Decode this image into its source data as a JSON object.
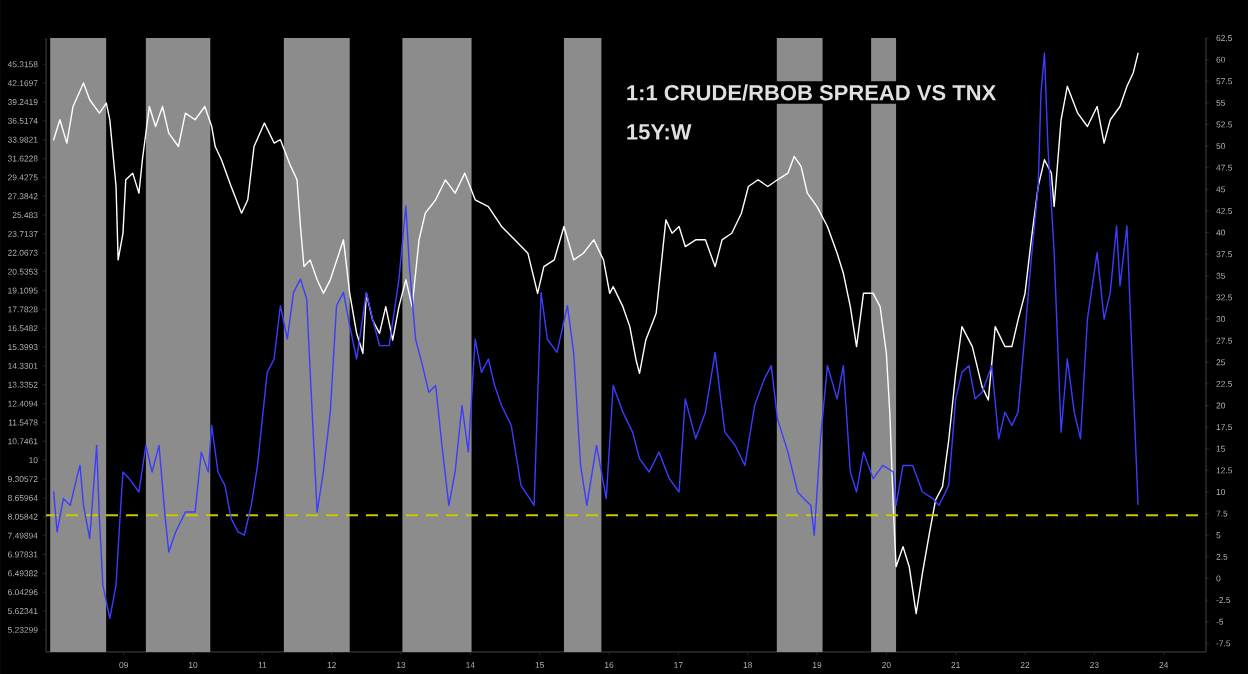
{
  "chart_data": {
    "type": "line",
    "title": "1:1 CRUDE/RBOB SPREAD VS TNX",
    "subtitle": "15Y:W",
    "log": "y",
    "xlim": [
      2007.88,
      2024.61
    ],
    "xticks": [
      {
        "value": 2009,
        "label": "09"
      },
      {
        "value": 2010,
        "label": "10"
      },
      {
        "value": 2011,
        "label": "11"
      },
      {
        "value": 2012,
        "label": "12"
      },
      {
        "value": 2013,
        "label": "13"
      },
      {
        "value": 2014,
        "label": "14"
      },
      {
        "value": 2015,
        "label": "15"
      },
      {
        "value": 2016,
        "label": "16"
      },
      {
        "value": 2017,
        "label": "17"
      },
      {
        "value": 2018,
        "label": "18"
      },
      {
        "value": 2019,
        "label": "19"
      },
      {
        "value": 2020,
        "label": "20"
      },
      {
        "value": 2021,
        "label": "21"
      },
      {
        "value": 2022,
        "label": "22"
      },
      {
        "value": 2023,
        "label": "23"
      },
      {
        "value": 2024,
        "label": "24"
      }
    ],
    "ylim": [
      4.81,
      50.1
    ],
    "yticks": [
      5.23299,
      5.62341,
      6.04296,
      6.49382,
      6.97831,
      7.49894,
      8.05842,
      8.65964,
      9.30572,
      10,
      10.7461,
      11.5478,
      12.4094,
      13.3352,
      14.3301,
      15.3993,
      16.5482,
      17.7828,
      19.1095,
      20.5353,
      22.0673,
      23.7137,
      25.483,
      27.3842,
      29.4275,
      31.6228,
      33.9821,
      36.5174,
      39.2419,
      42.1697,
      45.3158
    ],
    "y2lim": [
      -8.5,
      62.5
    ],
    "y2ticks": [
      -7.5,
      -5,
      -2.5,
      0,
      2.5,
      5,
      7.5,
      10,
      12.5,
      15,
      17.5,
      20,
      22.5,
      25,
      27.5,
      30,
      32.5,
      35,
      37.5,
      40,
      42.5,
      45,
      47.5,
      50,
      52.5,
      55,
      57.5,
      60,
      62.5
    ],
    "bands": [
      {
        "axis": "x",
        "from": 2007.94,
        "to": 2008.75,
        "color": "#8c8c8c"
      },
      {
        "axis": "x",
        "from": 2009.32,
        "to": 2010.25,
        "color": "#8c8c8c"
      },
      {
        "axis": "x",
        "from": 2011.31,
        "to": 2012.26,
        "color": "#8c8c8c"
      },
      {
        "axis": "x",
        "from": 2013.02,
        "to": 2014.02,
        "color": "#8c8c8c"
      },
      {
        "axis": "x",
        "from": 2015.35,
        "to": 2015.89,
        "color": "#8c8c8c"
      },
      {
        "axis": "x",
        "from": 2018.42,
        "to": 2019.08,
        "color": "#8c8c8c"
      },
      {
        "axis": "x",
        "from": 2019.78,
        "to": 2020.14,
        "color": "#8c8c8c"
      }
    ],
    "ref_lines": [
      {
        "axis": "y2",
        "value": 7.3,
        "color": "#c8c800",
        "line_style": "dashed"
      }
    ],
    "series": [
      {
        "color": "#ffffff",
        "x": [
          2007.99,
          2008.08,
          2008.18,
          2008.27,
          2008.42,
          2008.51,
          2008.65,
          2008.75,
          2008.8,
          2008.89,
          2008.92,
          2008.99,
          2009.03,
          2009.13,
          2009.22,
          2009.27,
          2009.37,
          2009.46,
          2009.56,
          2009.65,
          2009.79,
          2009.89,
          2010.03,
          2010.17,
          2010.27,
          2010.32,
          2010.41,
          2010.55,
          2010.7,
          2010.79,
          2010.88,
          2011.03,
          2011.17,
          2011.26,
          2011.41,
          2011.5,
          2011.55,
          2011.6,
          2011.69,
          2011.79,
          2011.88,
          2011.98,
          2012.17,
          2012.26,
          2012.36,
          2012.45,
          2012.5,
          2012.59,
          2012.69,
          2012.78,
          2012.88,
          2012.97,
          2013.07,
          2013.16,
          2013.26,
          2013.35,
          2013.5,
          2013.64,
          2013.78,
          2013.92,
          2014.07,
          2014.26,
          2014.45,
          2014.64,
          2014.83,
          2014.97,
          2015.06,
          2015.21,
          2015.35,
          2015.49,
          2015.63,
          2015.78,
          2015.92,
          2016.01,
          2016.06,
          2016.2,
          2016.3,
          2016.39,
          2016.44,
          2016.53,
          2016.68,
          2016.82,
          2016.91,
          2017.01,
          2017.1,
          2017.25,
          2017.39,
          2017.53,
          2017.63,
          2017.77,
          2017.91,
          2018.01,
          2018.15,
          2018.29,
          2018.43,
          2018.58,
          2018.67,
          2018.77,
          2018.86,
          2019.0,
          2019.15,
          2019.29,
          2019.38,
          2019.48,
          2019.57,
          2019.67,
          2019.81,
          2019.91,
          2020.0,
          2020.05,
          2020.1,
          2020.14,
          2020.24,
          2020.33,
          2020.43,
          2020.52,
          2020.62,
          2020.71,
          2020.81,
          2020.9,
          2021.0,
          2021.09,
          2021.24,
          2021.38,
          2021.47,
          2021.57,
          2021.71,
          2021.81,
          2021.9,
          2022.0,
          2022.09,
          2022.19,
          2022.28,
          2022.38,
          2022.42,
          2022.52,
          2022.61,
          2022.76,
          2022.9,
          2023.04,
          2023.14,
          2023.23,
          2023.37,
          2023.47,
          2023.56,
          2023.63
        ],
        "values": [
          33.98,
          36.67,
          33.55,
          38.58,
          42.19,
          39.58,
          37.61,
          39.08,
          36.67,
          28.43,
          21.48,
          23.78,
          29.16,
          29.91,
          27.71,
          31.48,
          38.58,
          35.74,
          38.58,
          34.84,
          33.11,
          37.61,
          36.67,
          38.58,
          35.74,
          33.11,
          31.48,
          28.43,
          25.67,
          27.02,
          33.11,
          36.21,
          33.55,
          33.98,
          30.69,
          29.16,
          24.4,
          20.94,
          21.48,
          19.91,
          18.91,
          19.91,
          23.19,
          18.91,
          16.23,
          15.04,
          18.91,
          17.08,
          16.23,
          17.97,
          15.82,
          17.97,
          19.91,
          17.97,
          23.19,
          25.67,
          27.02,
          29.16,
          27.71,
          29.91,
          27.02,
          26.33,
          24.4,
          23.19,
          22.03,
          18.91,
          20.94,
          21.48,
          24.4,
          21.48,
          22.03,
          23.19,
          21.48,
          18.91,
          19.4,
          17.97,
          16.65,
          14.66,
          13.93,
          15.82,
          17.52,
          25.02,
          23.78,
          24.4,
          22.6,
          23.19,
          23.19,
          20.94,
          23.19,
          23.78,
          25.67,
          28.43,
          29.16,
          28.43,
          29.16,
          29.91,
          31.88,
          30.69,
          27.71,
          26.33,
          24.4,
          22.03,
          20.41,
          17.97,
          15.43,
          18.91,
          18.91,
          17.97,
          15.04,
          11.96,
          8.37,
          6.66,
          7.19,
          6.66,
          5.57,
          6.49,
          7.56,
          8.59,
          9.04,
          10.8,
          13.93,
          16.65,
          15.43,
          13.24,
          12.58,
          16.65,
          15.43,
          15.43,
          17.08,
          18.91,
          23.19,
          28.43,
          31.48,
          29.91,
          26.33,
          36.67,
          41.66,
          37.61,
          35.74,
          38.58,
          33.55,
          36.67,
          38.58,
          41.66,
          43.83,
          47.25
        ]
      },
      {
        "color": "#3c3cff",
        "axis": "y2",
        "x": [
          2007.99,
          2008.04,
          2008.13,
          2008.23,
          2008.32,
          2008.37,
          2008.42,
          2008.51,
          2008.61,
          2008.65,
          2008.7,
          2008.8,
          2008.89,
          2008.94,
          2008.99,
          2009.08,
          2009.22,
          2009.32,
          2009.41,
          2009.51,
          2009.6,
          2009.65,
          2009.75,
          2009.89,
          2010.03,
          2010.12,
          2010.22,
          2010.27,
          2010.36,
          2010.46,
          2010.55,
          2010.65,
          2010.74,
          2010.84,
          2010.93,
          2011.07,
          2011.17,
          2011.26,
          2011.36,
          2011.45,
          2011.55,
          2011.64,
          2011.69,
          2011.79,
          2011.88,
          2011.98,
          2012.07,
          2012.17,
          2012.26,
          2012.36,
          2012.5,
          2012.59,
          2012.69,
          2012.83,
          2012.97,
          2013.07,
          2013.12,
          2013.21,
          2013.31,
          2013.4,
          2013.5,
          2013.59,
          2013.69,
          2013.78,
          2013.88,
          2013.97,
          2014.07,
          2014.16,
          2014.26,
          2014.35,
          2014.45,
          2014.59,
          2014.73,
          2014.92,
          2015.02,
          2015.11,
          2015.25,
          2015.4,
          2015.49,
          2015.59,
          2015.68,
          2015.82,
          2015.96,
          2016.06,
          2016.2,
          2016.34,
          2016.44,
          2016.58,
          2016.72,
          2016.87,
          2017.01,
          2017.1,
          2017.25,
          2017.39,
          2017.53,
          2017.67,
          2017.82,
          2017.96,
          2018.1,
          2018.24,
          2018.34,
          2018.43,
          2018.58,
          2018.72,
          2018.81,
          2018.91,
          2018.96,
          2019.05,
          2019.15,
          2019.29,
          2019.38,
          2019.48,
          2019.57,
          2019.67,
          2019.81,
          2019.95,
          2020.1,
          2020.14,
          2020.24,
          2020.38,
          2020.52,
          2020.67,
          2020.76,
          2020.9,
          2021.0,
          2021.09,
          2021.19,
          2021.28,
          2021.38,
          2021.52,
          2021.62,
          2021.71,
          2021.81,
          2021.9,
          2022.0,
          2022.09,
          2022.19,
          2022.23,
          2022.28,
          2022.33,
          2022.42,
          2022.52,
          2022.61,
          2022.71,
          2022.8,
          2022.9,
          2023.04,
          2023.14,
          2023.23,
          2023.32,
          2023.37,
          2023.47,
          2023.56,
          2023.63
        ],
        "values": [
          10.0,
          5.38,
          9.23,
          8.46,
          11.54,
          13.07,
          8.46,
          4.61,
          15.38,
          6.92,
          -0.77,
          -4.62,
          -0.77,
          6.15,
          12.31,
          11.54,
          10.0,
          15.38,
          12.31,
          15.38,
          6.92,
          3.07,
          5.38,
          7.69,
          7.69,
          14.61,
          12.31,
          17.69,
          12.31,
          10.77,
          6.92,
          5.38,
          5.0,
          8.46,
          13.07,
          23.84,
          25.38,
          31.54,
          27.69,
          33.08,
          34.62,
          32.31,
          23.84,
          7.69,
          12.31,
          19.23,
          31.54,
          33.08,
          29.23,
          25.38,
          33.08,
          30.0,
          26.92,
          26.92,
          34.62,
          43.08,
          36.15,
          27.69,
          24.61,
          21.54,
          22.31,
          15.38,
          8.46,
          12.31,
          20.0,
          14.61,
          27.69,
          23.84,
          25.38,
          22.31,
          20.0,
          17.69,
          10.77,
          8.46,
          33.08,
          27.69,
          26.15,
          31.54,
          26.15,
          13.07,
          8.46,
          15.38,
          9.23,
          22.31,
          19.23,
          16.92,
          13.85,
          12.31,
          14.61,
          11.54,
          10.0,
          20.77,
          16.15,
          19.23,
          26.15,
          16.92,
          15.38,
          13.07,
          20.0,
          23.08,
          24.61,
          18.46,
          14.61,
          10.0,
          9.23,
          8.46,
          5.0,
          16.15,
          24.61,
          20.77,
          24.61,
          12.31,
          10.0,
          14.61,
          11.54,
          13.07,
          12.31,
          8.46,
          13.07,
          13.07,
          10.0,
          9.23,
          8.46,
          10.77,
          20.77,
          23.84,
          24.61,
          20.77,
          21.54,
          24.61,
          16.15,
          19.23,
          17.69,
          19.23,
          28.46,
          36.92,
          45.39,
          56.16,
          60.77,
          50.0,
          37.69,
          16.92,
          25.38,
          19.23,
          16.15,
          30.0,
          37.69,
          30.0,
          33.08,
          40.77,
          33.85,
          40.77,
          22.31,
          8.59
        ]
      }
    ]
  }
}
